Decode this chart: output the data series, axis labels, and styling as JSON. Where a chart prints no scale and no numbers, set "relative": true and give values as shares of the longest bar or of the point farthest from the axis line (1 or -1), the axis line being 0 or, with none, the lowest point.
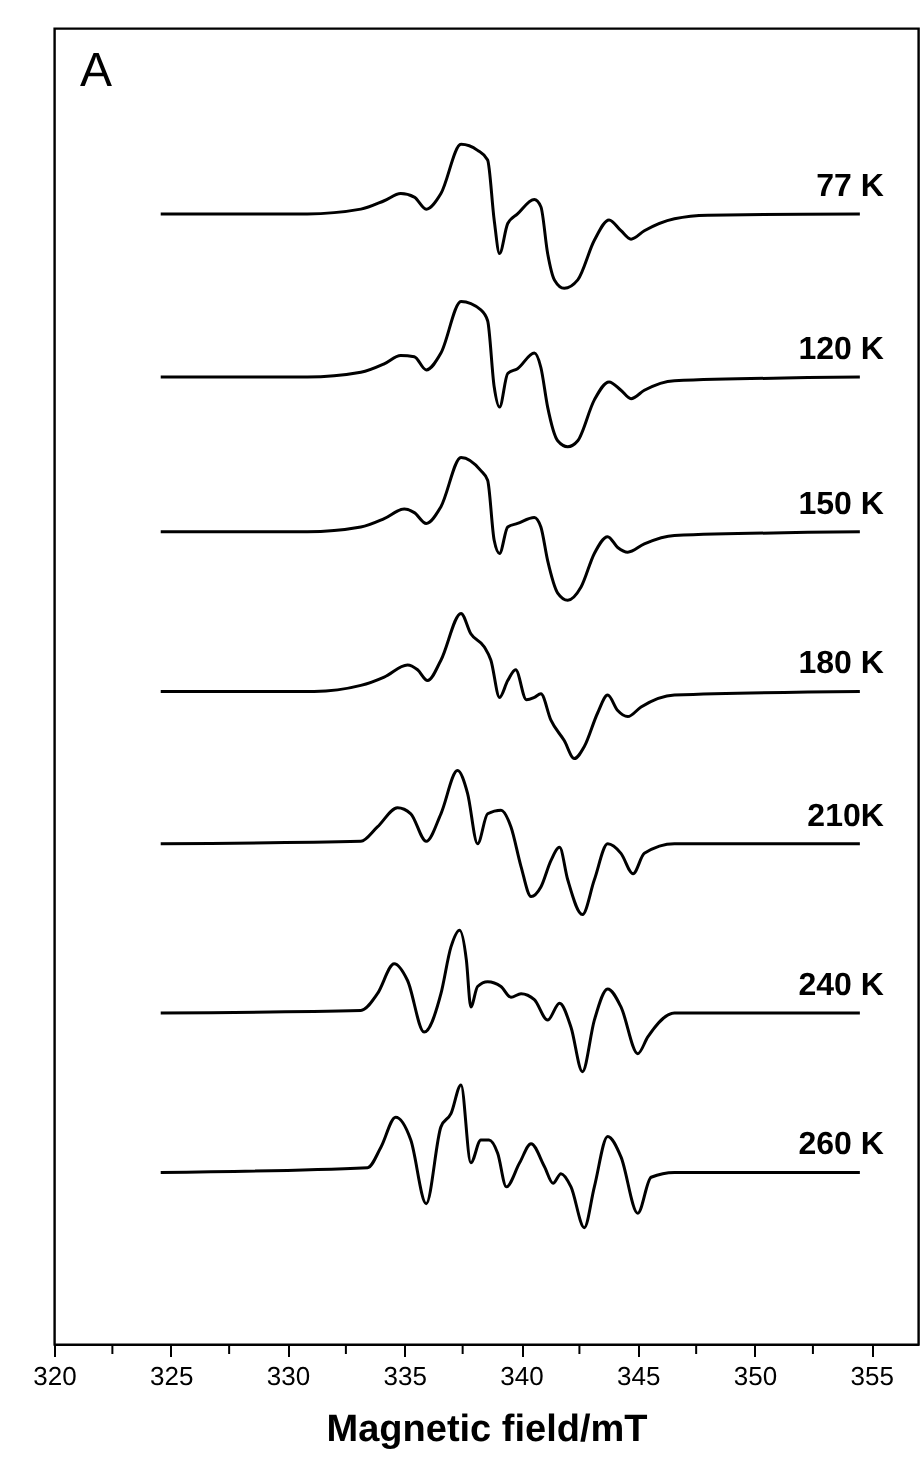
{
  "chart_data": {
    "type": "line",
    "relative": true,
    "xlabel": "Magnetic field/mT",
    "annotations": [
      "A"
    ],
    "xlim": [
      320,
      357
    ],
    "xticks": [
      320,
      {
        "value": 322.5,
        "label": null
      },
      325,
      {
        "value": 327.5,
        "label": null
      },
      330,
      {
        "value": 332.5,
        "label": null
      },
      335,
      {
        "value": 337.5,
        "label": null
      },
      340,
      {
        "value": 342.5,
        "label": null
      },
      345,
      {
        "value": 347.5,
        "label": null
      },
      350,
      {
        "value": 352.5,
        "label": null
      },
      355
    ],
    "series": [
      {
        "name": "77 K",
        "color": "#000000",
        "x": [
          324.57,
          330.85,
          333.14,
          334.14,
          334.85,
          335.43,
          335.94,
          336.57,
          337.43,
          338.14,
          338.57,
          338.85,
          339.08,
          339.43,
          339.85,
          340.57,
          340.85,
          341.14,
          341.43,
          341.85,
          342.43,
          343.14,
          343.77,
          344.28,
          344.71,
          345.28,
          346.57,
          348.0,
          354.51
        ],
        "values": [
          0.942,
          0.942,
          0.946,
          0.953,
          0.959,
          0.956,
          0.946,
          0.959,
          1.0,
          0.995,
          0.987,
          0.937,
          0.909,
          0.934,
          0.942,
          0.954,
          0.948,
          0.909,
          0.887,
          0.88,
          0.887,
          0.92,
          0.937,
          0.928,
          0.921,
          0.928,
          0.938,
          0.941,
          0.942
        ]
      },
      {
        "name": "120 K",
        "color": "#000000",
        "x": [
          324.57,
          330.85,
          333.14,
          334.14,
          334.85,
          335.43,
          335.94,
          336.57,
          337.43,
          338.28,
          338.57,
          338.85,
          339.08,
          339.43,
          339.85,
          340.57,
          340.85,
          341.14,
          341.57,
          342.0,
          342.43,
          343.14,
          343.77,
          344.28,
          344.71,
          345.28,
          346.57,
          354.51
        ],
        "values": [
          0.806,
          0.806,
          0.81,
          0.817,
          0.824,
          0.823,
          0.812,
          0.826,
          0.869,
          0.862,
          0.853,
          0.798,
          0.781,
          0.809,
          0.813,
          0.826,
          0.814,
          0.781,
          0.753,
          0.748,
          0.753,
          0.787,
          0.802,
          0.795,
          0.788,
          0.795,
          0.803,
          0.806
        ]
      },
      {
        "name": "150 K",
        "color": "#000000",
        "x": [
          324.57,
          330.85,
          333.14,
          334.14,
          335.0,
          335.43,
          335.94,
          336.57,
          337.43,
          338.28,
          338.57,
          338.85,
          339.08,
          339.43,
          339.85,
          340.57,
          340.85,
          341.14,
          341.57,
          342.0,
          342.57,
          343.14,
          343.71,
          344.14,
          344.57,
          345.28,
          346.57,
          354.51
        ],
        "values": [
          0.677,
          0.677,
          0.681,
          0.688,
          0.696,
          0.693,
          0.684,
          0.698,
          0.739,
          0.728,
          0.72,
          0.67,
          0.659,
          0.681,
          0.684,
          0.689,
          0.681,
          0.653,
          0.626,
          0.62,
          0.631,
          0.659,
          0.673,
          0.664,
          0.66,
          0.667,
          0.674,
          0.677
        ]
      },
      {
        "name": "180 K",
        "color": "#000000",
        "x": [
          324.57,
          331.14,
          333.14,
          334.14,
          335.14,
          335.57,
          336.0,
          336.57,
          337.43,
          337.85,
          338.43,
          338.71,
          339.08,
          339.43,
          339.77,
          340.23,
          340.57,
          340.85,
          341.28,
          341.85,
          342.28,
          342.71,
          343.28,
          343.71,
          344.14,
          344.57,
          345.14,
          346.57,
          354.51
        ],
        "values": [
          0.544,
          0.544,
          0.549,
          0.556,
          0.566,
          0.562,
          0.553,
          0.57,
          0.609,
          0.592,
          0.581,
          0.57,
          0.539,
          0.553,
          0.562,
          0.537,
          0.539,
          0.542,
          0.52,
          0.503,
          0.488,
          0.498,
          0.526,
          0.541,
          0.528,
          0.523,
          0.531,
          0.541,
          0.544
        ]
      },
      {
        "name": "210K",
        "color": "#000000",
        "x": [
          324.57,
          333.14,
          333.85,
          334.71,
          335.28,
          335.94,
          336.57,
          337.28,
          337.71,
          338.14,
          338.57,
          339.14,
          339.57,
          340.0,
          340.43,
          340.85,
          341.28,
          341.65,
          342.0,
          342.63,
          343.14,
          343.71,
          344.28,
          344.8,
          345.28,
          346.57,
          354.51
        ],
        "values": [
          0.417,
          0.419,
          0.431,
          0.447,
          0.442,
          0.419,
          0.442,
          0.478,
          0.459,
          0.417,
          0.442,
          0.445,
          0.431,
          0.398,
          0.373,
          0.381,
          0.403,
          0.414,
          0.387,
          0.358,
          0.387,
          0.417,
          0.409,
          0.392,
          0.409,
          0.417,
          0.417
        ]
      },
      {
        "name": "240 K",
        "color": "#000000",
        "x": [
          324.57,
          333.14,
          333.85,
          334.57,
          335.14,
          335.85,
          336.57,
          337.0,
          337.37,
          337.66,
          337.85,
          338.14,
          338.57,
          339.14,
          339.57,
          340.0,
          340.57,
          341.14,
          341.65,
          342.14,
          342.63,
          343.14,
          343.71,
          344.28,
          345.0,
          345.43,
          346.57,
          354.51
        ],
        "values": [
          0.276,
          0.278,
          0.292,
          0.317,
          0.303,
          0.26,
          0.292,
          0.331,
          0.345,
          0.32,
          0.281,
          0.298,
          0.302,
          0.298,
          0.289,
          0.292,
          0.287,
          0.27,
          0.284,
          0.264,
          0.227,
          0.27,
          0.296,
          0.281,
          0.242,
          0.256,
          0.276,
          0.276
        ]
      },
      {
        "name": "260 K",
        "color": "#000000",
        "x": [
          324.57,
          333.43,
          334.0,
          334.63,
          335.28,
          335.94,
          336.57,
          337.0,
          337.43,
          337.85,
          338.28,
          338.63,
          339.0,
          339.37,
          339.94,
          340.43,
          341.0,
          341.37,
          341.71,
          342.14,
          342.71,
          343.14,
          343.71,
          344.28,
          345.0,
          345.57,
          346.57,
          354.51
        ],
        "values": [
          0.143,
          0.147,
          0.164,
          0.189,
          0.17,
          0.117,
          0.181,
          0.192,
          0.216,
          0.151,
          0.17,
          0.17,
          0.159,
          0.131,
          0.151,
          0.167,
          0.148,
          0.134,
          0.142,
          0.131,
          0.097,
          0.131,
          0.173,
          0.156,
          0.109,
          0.139,
          0.143,
          0.143
        ]
      }
    ]
  }
}
